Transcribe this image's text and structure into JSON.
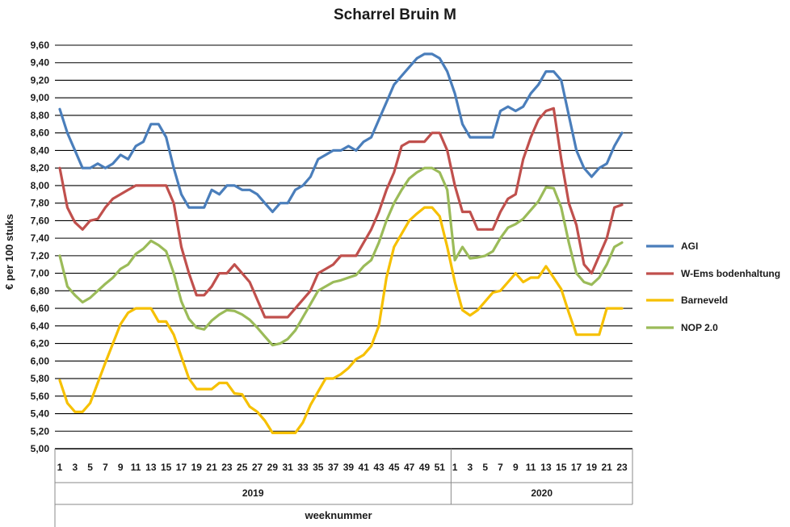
{
  "chart_data": {
    "type": "line",
    "title": "Scharrel Bruin M",
    "xlabel": "weeknummer",
    "ylabel": "€ per 100 stuks",
    "ylim": [
      5.0,
      9.6
    ],
    "yticks": [
      "5,00",
      "5,20",
      "5,40",
      "5,60",
      "5,80",
      "6,00",
      "6,20",
      "6,40",
      "6,60",
      "6,80",
      "7,00",
      "7,20",
      "7,40",
      "7,60",
      "7,80",
      "8,00",
      "8,20",
      "8,40",
      "8,60",
      "8,80",
      "9,00",
      "9,20",
      "9,40",
      "9,60"
    ],
    "yticks_values": [
      5.0,
      5.2,
      5.4,
      5.6,
      5.8,
      6.0,
      6.2,
      6.4,
      6.6,
      6.8,
      7.0,
      7.2,
      7.4,
      7.6,
      7.8,
      8.0,
      8.2,
      8.4,
      8.6,
      8.8,
      9.0,
      9.2,
      9.4,
      9.6
    ],
    "grid": true,
    "legend_position": "right",
    "x": [
      1,
      2,
      3,
      4,
      5,
      6,
      7,
      8,
      9,
      10,
      11,
      12,
      13,
      14,
      15,
      16,
      17,
      18,
      19,
      20,
      21,
      22,
      23,
      24,
      25,
      26,
      27,
      28,
      29,
      30,
      31,
      32,
      33,
      34,
      35,
      36,
      37,
      38,
      39,
      40,
      41,
      42,
      43,
      44,
      45,
      46,
      47,
      48,
      49,
      50,
      51,
      52,
      1,
      2,
      3,
      4,
      5,
      6,
      7,
      8,
      9,
      10,
      11,
      12,
      13,
      14,
      15,
      16,
      17,
      18,
      19,
      20,
      21,
      22,
      23
    ],
    "xtick_labels_2019": [
      "1",
      "3",
      "5",
      "7",
      "9",
      "11",
      "13",
      "15",
      "17",
      "19",
      "21",
      "23",
      "25",
      "27",
      "29",
      "31",
      "33",
      "35",
      "37",
      "39",
      "41",
      "43",
      "45",
      "47",
      "49",
      "51"
    ],
    "xtick_labels_2020": [
      "1",
      "3",
      "5",
      "7",
      "9",
      "11",
      "13",
      "15",
      "17",
      "19",
      "21",
      "23"
    ],
    "groups": [
      {
        "label": "2019",
        "weeks": 52
      },
      {
        "label": "2020",
        "weeks": 23
      }
    ],
    "series": [
      {
        "name": "AGI",
        "color": "#4a7ebb",
        "values": [
          8.87,
          8.6,
          8.4,
          8.2,
          8.2,
          8.25,
          8.2,
          8.25,
          8.35,
          8.3,
          8.45,
          8.5,
          8.7,
          8.7,
          8.55,
          8.2,
          7.9,
          7.75,
          7.75,
          7.75,
          7.95,
          7.9,
          8.0,
          8.0,
          7.95,
          7.95,
          7.9,
          7.8,
          7.7,
          7.8,
          7.8,
          7.95,
          8.0,
          8.1,
          8.3,
          8.35,
          8.4,
          8.4,
          8.45,
          8.4,
          8.5,
          8.55,
          8.75,
          8.95,
          9.15,
          9.25,
          9.35,
          9.45,
          9.5,
          9.5,
          9.45,
          9.3,
          9.05,
          8.7,
          8.55,
          8.55,
          8.55,
          8.55,
          8.85,
          8.9,
          8.85,
          8.9,
          9.05,
          9.15,
          9.3,
          9.3,
          9.2,
          8.8,
          8.4,
          8.2,
          8.1,
          8.2,
          8.25,
          8.45,
          8.6
        ]
      },
      {
        "name": "W-Ems bodenhaltung",
        "color": "#c0504d",
        "values": [
          8.2,
          7.75,
          7.58,
          7.5,
          7.6,
          7.62,
          7.75,
          7.85,
          7.9,
          7.95,
          8.0,
          8.0,
          8.0,
          8.0,
          8.0,
          7.8,
          7.3,
          7.0,
          6.75,
          6.75,
          6.85,
          7.0,
          7.0,
          7.1,
          7.0,
          6.9,
          6.7,
          6.5,
          6.5,
          6.5,
          6.5,
          6.6,
          6.7,
          6.8,
          7.0,
          7.05,
          7.1,
          7.2,
          7.2,
          7.2,
          7.35,
          7.5,
          7.7,
          7.95,
          8.15,
          8.45,
          8.5,
          8.5,
          8.5,
          8.6,
          8.6,
          8.4,
          8.0,
          7.7,
          7.7,
          7.5,
          7.5,
          7.5,
          7.7,
          7.85,
          7.9,
          8.3,
          8.55,
          8.75,
          8.85,
          8.88,
          8.3,
          7.8,
          7.55,
          7.1,
          7.0,
          7.2,
          7.4,
          7.75,
          7.78
        ]
      },
      {
        "name": "Barneveld",
        "color": "#f6c000",
        "values": [
          5.78,
          5.52,
          5.42,
          5.42,
          5.52,
          5.75,
          5.98,
          6.2,
          6.42,
          6.55,
          6.6,
          6.6,
          6.6,
          6.45,
          6.45,
          6.3,
          6.05,
          5.8,
          5.68,
          5.68,
          5.68,
          5.75,
          5.75,
          5.63,
          5.62,
          5.48,
          5.42,
          5.32,
          5.18,
          5.18,
          5.18,
          5.18,
          5.3,
          5.5,
          5.65,
          5.8,
          5.8,
          5.85,
          5.92,
          6.02,
          6.07,
          6.17,
          6.4,
          6.95,
          7.3,
          7.45,
          7.6,
          7.68,
          7.75,
          7.75,
          7.65,
          7.3,
          6.9,
          6.58,
          6.52,
          6.58,
          6.68,
          6.78,
          6.8,
          6.9,
          7.0,
          6.9,
          6.95,
          6.95,
          7.08,
          6.95,
          6.82,
          6.55,
          6.3,
          6.3,
          6.3,
          6.3,
          6.6,
          6.6,
          6.6
        ]
      },
      {
        "name": "NOP 2.0",
        "color": "#9bbb59",
        "values": [
          7.2,
          6.85,
          6.75,
          6.67,
          6.72,
          6.8,
          6.88,
          6.95,
          7.05,
          7.1,
          7.22,
          7.28,
          7.37,
          7.32,
          7.25,
          7.0,
          6.68,
          6.48,
          6.38,
          6.36,
          6.46,
          6.53,
          6.58,
          6.57,
          6.53,
          6.47,
          6.38,
          6.28,
          6.18,
          6.2,
          6.25,
          6.35,
          6.5,
          6.65,
          6.8,
          6.85,
          6.9,
          6.92,
          6.95,
          6.98,
          7.08,
          7.15,
          7.35,
          7.6,
          7.8,
          7.95,
          8.08,
          8.15,
          8.2,
          8.2,
          8.15,
          7.95,
          7.15,
          7.3,
          7.17,
          7.18,
          7.2,
          7.25,
          7.4,
          7.52,
          7.56,
          7.62,
          7.72,
          7.82,
          7.98,
          7.97,
          7.75,
          7.35,
          7.0,
          6.9,
          6.87,
          6.95,
          7.1,
          7.3,
          7.35
        ]
      }
    ]
  }
}
